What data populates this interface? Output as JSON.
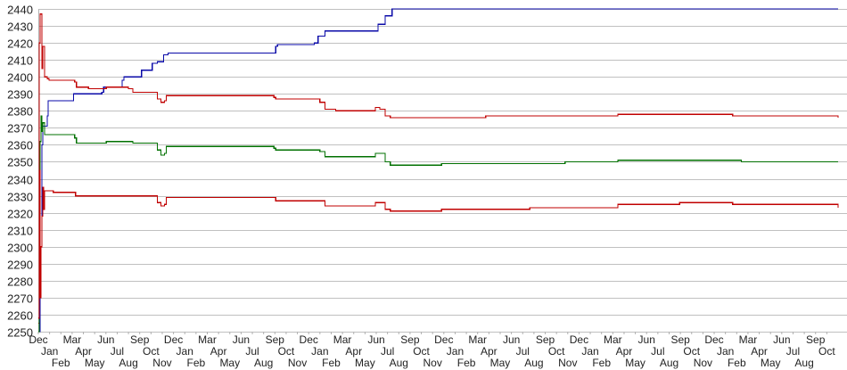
{
  "chart_data": {
    "type": "line",
    "title": "",
    "xlabel": "",
    "ylabel": "",
    "ylim": [
      2250,
      2440
    ],
    "y_ticks": [
      2250,
      2260,
      2270,
      2280,
      2290,
      2300,
      2310,
      2320,
      2330,
      2340,
      2350,
      2360,
      2370,
      2380,
      2390,
      2400,
      2410,
      2420,
      2430,
      2440
    ],
    "grid": true,
    "legend": "none",
    "x_unit": "months since first label",
    "xlim": [
      0,
      71
    ],
    "x_tick_labels": [
      "Dec",
      "Jan",
      "Feb",
      "Mar",
      "Apr",
      "May",
      "Jun",
      "Jul",
      "Aug",
      "Sep",
      "Oct",
      "Nov",
      "Dec",
      "Jan",
      "Feb",
      "Mar",
      "Apr",
      "May",
      "Jun",
      "Jul",
      "Aug",
      "Sep",
      "Oct",
      "Nov",
      "Dec",
      "Jan",
      "Feb",
      "Mar",
      "Apr",
      "May",
      "Jun",
      "Jul",
      "Aug",
      "Sep",
      "Oct",
      "Nov",
      "Dec",
      "Jan",
      "Feb",
      "Mar",
      "Apr",
      "May",
      "Jun",
      "Jul",
      "Aug",
      "Sep",
      "Oct",
      "Nov",
      "Dec",
      "Jan",
      "Feb",
      "Mar",
      "Apr",
      "May",
      "Jun",
      "Jul",
      "Aug",
      "Sep",
      "Oct",
      "Nov",
      "Dec",
      "Jan",
      "Feb",
      "Mar",
      "Apr",
      "May",
      "Jun",
      "Jul",
      "Aug",
      "Sep",
      "Oct"
    ],
    "series": [
      {
        "name": "blue",
        "color": "#0a0aa8",
        "x": [
          0,
          0.16,
          0.31,
          0.39,
          0.78,
          0.86,
          3.13,
          5.64,
          5.79,
          7.44,
          7.6,
          9.16,
          10.1,
          10.57,
          11.12,
          11.51,
          20.9,
          21.07,
          21.22,
          24.5,
          24.82,
          25.45,
          29.68,
          30.15,
          30.78,
          31.4,
          71
        ],
        "y": [
          2250,
          2300,
          2360,
          2371,
          2377,
          2386,
          2390,
          2391,
          2394,
          2398,
          2400,
          2404,
          2408,
          2409,
          2413,
          2414,
          2414,
          2418,
          2419,
          2420,
          2424,
          2427,
          2427,
          2431,
          2436,
          2440,
          2440
        ]
      },
      {
        "name": "red-upper",
        "color": "#c00000",
        "x": [
          0,
          0.08,
          0.16,
          0.31,
          0.39,
          0.55,
          0.78,
          0.94,
          1.33,
          3.21,
          3.37,
          4.46,
          6.03,
          7.99,
          8.38,
          10.34,
          10.57,
          10.88,
          11.2,
          11.35,
          13.86,
          16.21,
          19.34,
          20.91,
          21.06,
          24.82,
          24.98,
          25.45,
          26.39,
          29.52,
          29.91,
          30.31,
          30.78,
          31.24,
          35.79,
          39.7,
          46.75,
          51.45,
          60.85,
          61.63,
          71
        ],
        "y": [
          2255,
          2420,
          2437,
          2405,
          2418,
          2400,
          2399,
          2398,
          2398,
          2397,
          2394,
          2393,
          2394,
          2393,
          2391,
          2391,
          2387,
          2385,
          2386,
          2389,
          2389,
          2389,
          2389,
          2388,
          2387,
          2387,
          2385,
          2381,
          2380,
          2380,
          2382,
          2381,
          2377,
          2376,
          2376,
          2377,
          2377,
          2378,
          2378,
          2377,
          2376
        ]
      },
      {
        "name": "green",
        "color": "#007000",
        "x": [
          0,
          0.08,
          0.16,
          0.23,
          0.31,
          0.39,
          0.55,
          1.33,
          3.21,
          3.37,
          6.03,
          8.38,
          10.57,
          10.88,
          11.2,
          11.35,
          20.91,
          21.06,
          24.98,
          25.45,
          29.52,
          29.91,
          30.78,
          31.24,
          35.79,
          46.75,
          51.45,
          61.63,
          62.41,
          71
        ],
        "y": [
          2250,
          2330,
          2362,
          2377,
          2368,
          2373,
          2366,
          2366,
          2364,
          2361,
          2362,
          2361,
          2357,
          2354,
          2355,
          2359,
          2358,
          2357,
          2356,
          2353,
          2353,
          2355,
          2350,
          2348,
          2349,
          2350,
          2351,
          2351,
          2350,
          2350
        ]
      },
      {
        "name": "red-lower",
        "color": "#c00000",
        "x": [
          0,
          0.08,
          0.16,
          0.23,
          0.31,
          0.39,
          0.47,
          0.55,
          1.33,
          3.29,
          6.81,
          8.38,
          10.57,
          10.88,
          11.2,
          11.35,
          20.91,
          21.06,
          24.98,
          25.45,
          29.52,
          29.91,
          30.78,
          31.24,
          35.79,
          43.62,
          51.45,
          56.93,
          61.63,
          71
        ],
        "y": [
          2258,
          2345,
          2270,
          2300,
          2318,
          2335,
          2322,
          2333,
          2332,
          2330,
          2330,
          2330,
          2326,
          2324,
          2325,
          2329,
          2329,
          2327,
          2327,
          2324,
          2324,
          2326,
          2322,
          2321,
          2322,
          2323,
          2325,
          2326,
          2325,
          2323
        ]
      }
    ]
  }
}
